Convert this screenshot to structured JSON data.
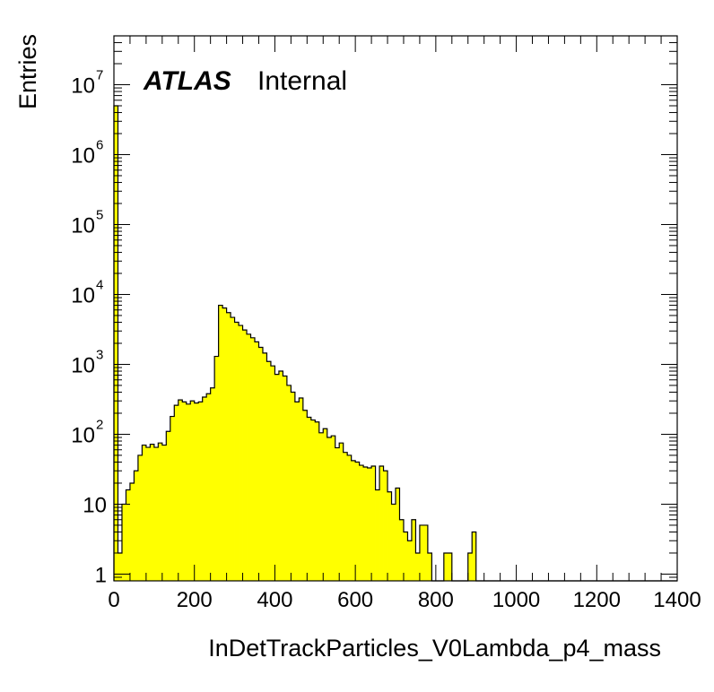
{
  "chart_data": {
    "type": "bar",
    "style": "histogram",
    "fill_color": "#ffff00",
    "line_color": "#000000",
    "xlabel": "InDetTrackParticles_V0Lambda_p4_mass",
    "ylabel": "Entries",
    "label_bold": "ATLAS",
    "label_normal": "Internal",
    "xlim": [
      0,
      1400
    ],
    "ylim": [
      0.8,
      50000000
    ],
    "yscale": "log",
    "bin_width": 10,
    "x_ticks": [
      "0",
      "200",
      "400",
      "600",
      "800",
      "1000",
      "1200",
      "1400"
    ],
    "x_tick_values": [
      0,
      200,
      400,
      600,
      800,
      1000,
      1200,
      1400
    ],
    "y_ticks": [
      {
        "value": 1,
        "base": "1",
        "exp": ""
      },
      {
        "value": 10,
        "base": "10",
        "exp": ""
      },
      {
        "value": 100,
        "base": "10",
        "exp": "2"
      },
      {
        "value": 1000,
        "base": "10",
        "exp": "3"
      },
      {
        "value": 10000,
        "base": "10",
        "exp": "4"
      },
      {
        "value": 100000,
        "base": "10",
        "exp": "5"
      },
      {
        "value": 1000000,
        "base": "10",
        "exp": "6"
      },
      {
        "value": 10000000,
        "base": "10",
        "exp": "7"
      }
    ],
    "values": [
      5000000,
      2,
      10,
      16,
      20,
      30,
      50,
      70,
      65,
      72,
      65,
      75,
      70,
      110,
      180,
      260,
      310,
      290,
      270,
      300,
      280,
      290,
      340,
      380,
      460,
      1300,
      7000,
      6400,
      5500,
      4700,
      4000,
      3600,
      3100,
      2700,
      2400,
      2100,
      1750,
      1450,
      1100,
      950,
      720,
      800,
      680,
      500,
      400,
      290,
      330,
      220,
      175,
      160,
      150,
      105,
      120,
      90,
      95,
      64,
      75,
      55,
      50,
      42,
      40,
      36,
      34,
      33,
      35,
      16,
      35,
      30,
      15,
      10,
      17,
      6,
      4,
      3,
      6,
      2,
      5,
      5,
      2,
      0,
      0,
      0,
      2,
      2,
      0,
      0,
      0,
      0,
      2,
      4,
      0,
      0,
      0,
      0,
      0,
      0,
      0,
      0,
      0,
      0,
      0,
      0,
      0,
      0,
      0,
      0,
      0,
      0,
      0,
      0,
      0,
      0,
      0,
      0,
      0,
      0,
      0,
      0,
      0,
      0,
      0,
      0,
      0,
      0,
      0,
      0,
      0,
      0,
      0,
      0,
      0,
      0,
      0,
      0,
      0,
      0,
      0,
      0,
      0,
      0
    ]
  }
}
